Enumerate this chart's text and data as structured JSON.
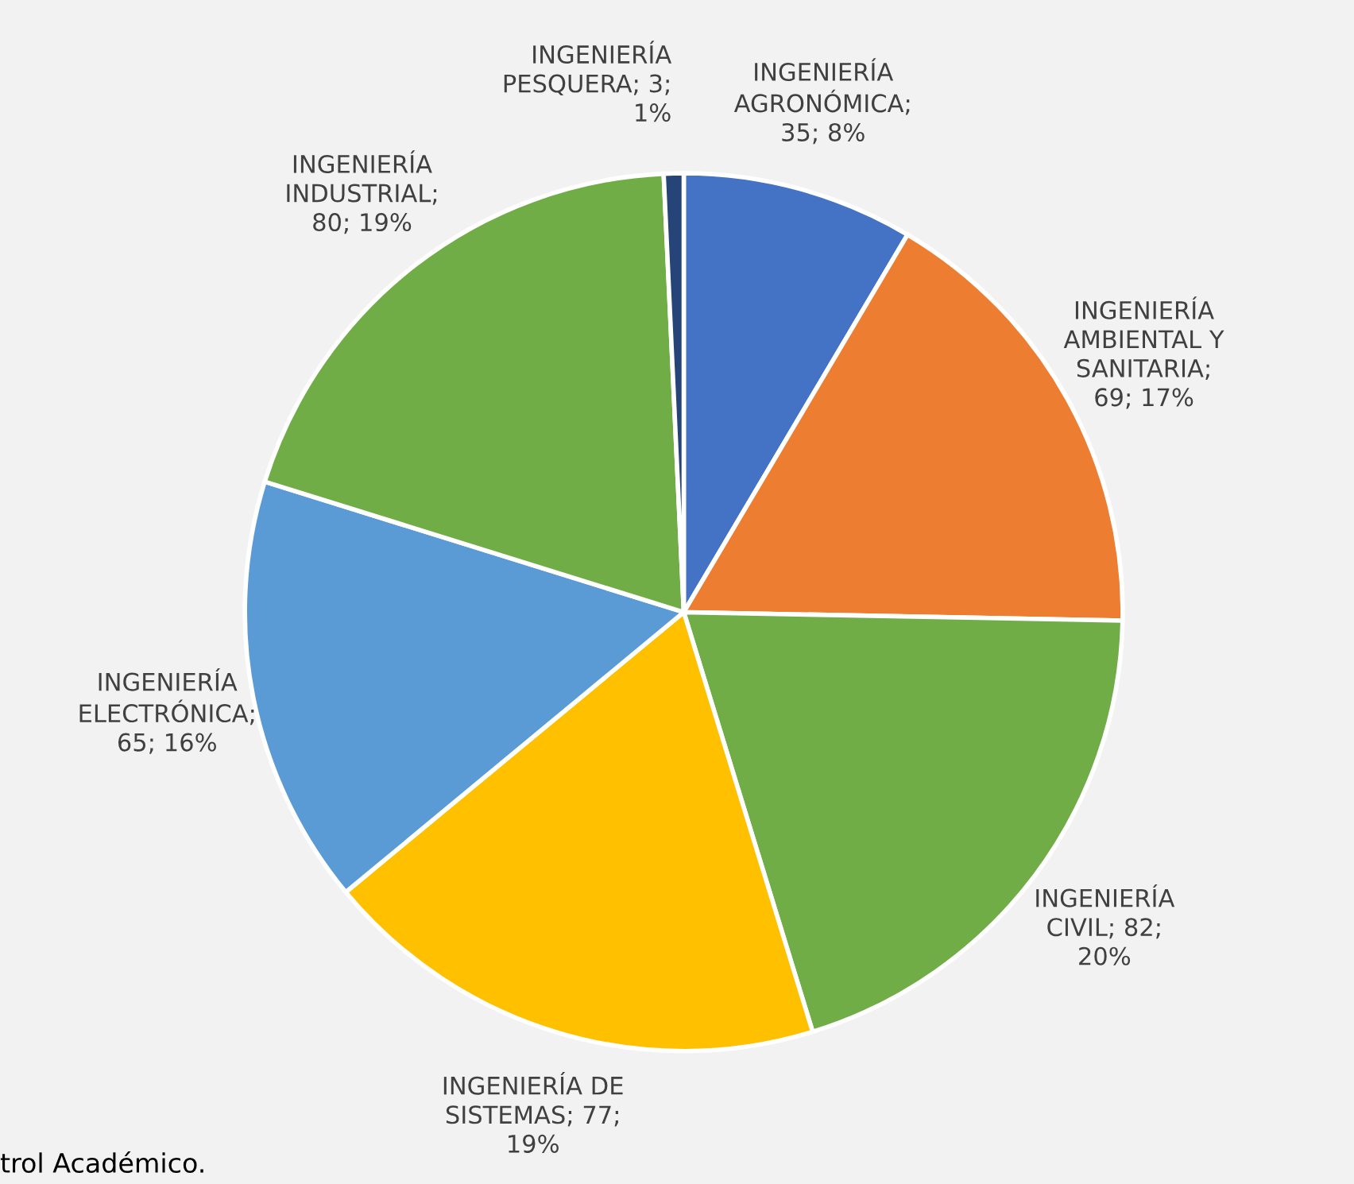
{
  "chart_data": {
    "type": "pie",
    "categories": [
      "INGENIERÍA AGRONÓMICA",
      "INGENIERÍA AMBIENTAL Y SANITARIA",
      "INGENIERÍA CIVIL",
      "INGENIERÍA DE SISTEMAS",
      "INGENIERÍA ELECTRÓNICA",
      "INGENIERÍA INDUSTRIAL",
      "INGENIERÍA PESQUERA"
    ],
    "values": [
      35,
      69,
      82,
      77,
      65,
      80,
      3
    ],
    "colors": [
      "#4472c4",
      "#ed7d31",
      "#70ad47",
      "#ffc000",
      "#5b9bd5",
      "#70ad47",
      "#264478"
    ],
    "value_labels": [
      "; 35; 8%",
      "; 69; 17%",
      "; 82; 20%",
      "; 77; 19%",
      "; 65; 16%",
      "; 80; 19%",
      "; 3; 1%"
    ],
    "annotations": [
      "trol Académico."
    ],
    "legend": false
  }
}
